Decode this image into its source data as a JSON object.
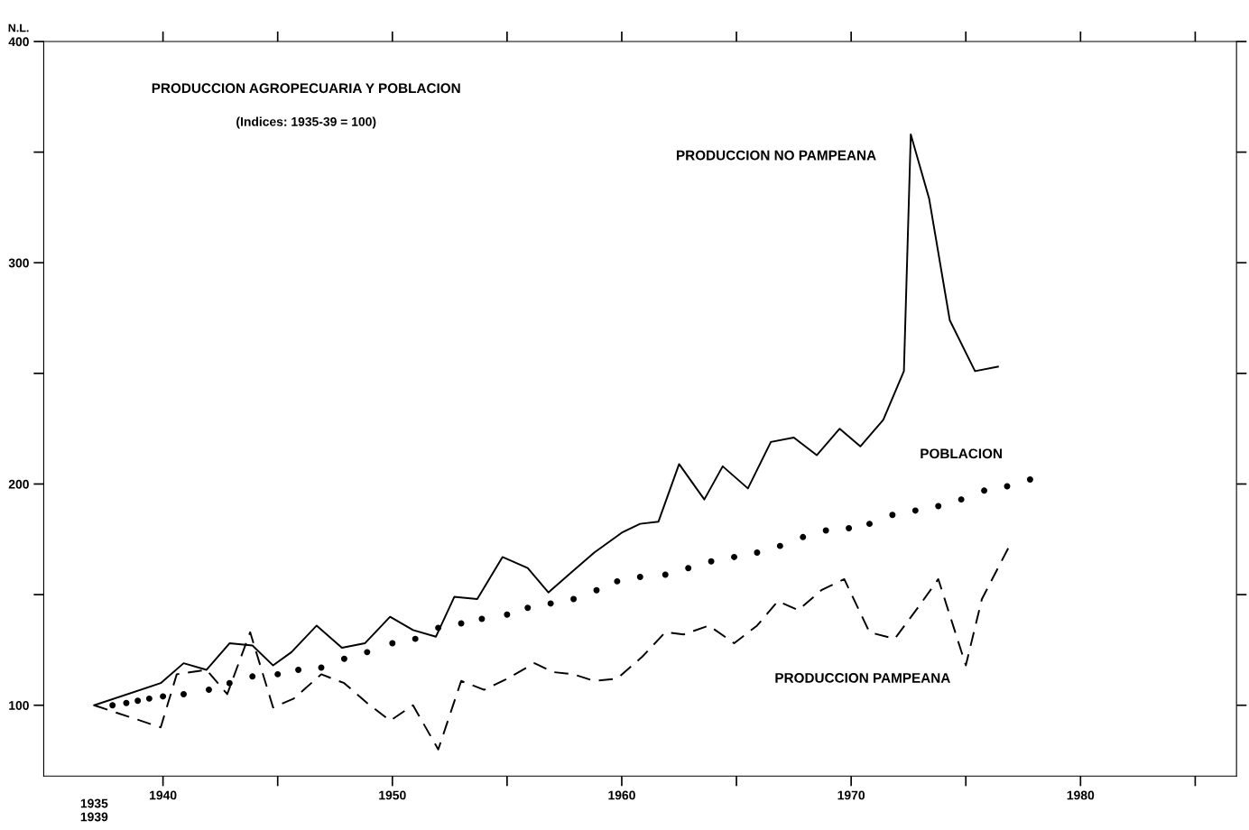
{
  "chart_data": {
    "type": "line",
    "title": "PRODUCCION AGROPECUARIA Y POBLACION",
    "subtitle": "(Indices: 1935-39 = 100)",
    "ylabel": "N.L.",
    "xlim": [
      1934.8,
      1986.8
    ],
    "ylim": [
      68,
      400
    ],
    "annotations": [
      "1935\n1939"
    ],
    "xticks": [
      1940,
      {
        "value": 1945,
        "label": null
      },
      1950,
      {
        "value": 1955,
        "label": null
      },
      1960,
      {
        "value": 1965,
        "label": null
      },
      1970,
      {
        "value": 1975,
        "label": null
      },
      1980,
      {
        "value": 1985,
        "label": null
      }
    ],
    "yticks": [
      100,
      {
        "value": 150,
        "label": null
      },
      200,
      {
        "value": 250,
        "label": null
      },
      300,
      {
        "value": 350,
        "label": null
      },
      400
    ],
    "grid": false,
    "legend": false,
    "series": [
      {
        "name": "PRODUCCION NO PAMPEANA",
        "line_style": "solid",
        "color": "#000000",
        "x": [
          1937.0,
          1939.9,
          1940.9,
          1941.9,
          1942.9,
          1943.9,
          1944.8,
          1945.6,
          1946.7,
          1947.8,
          1948.8,
          1949.9,
          1950.9,
          1951.9,
          1952.7,
          1953.7,
          1954.8,
          1955.9,
          1956.8,
          1957.8,
          1958.8,
          1960.0,
          1960.8,
          1961.6,
          1962.5,
          1963.6,
          1964.4,
          1965.5,
          1966.5,
          1967.5,
          1968.5,
          1969.5,
          1970.4,
          1971.4,
          1972.3,
          1972.6,
          1973.4,
          1974.3,
          1975.4,
          1976.4
        ],
        "values": [
          100,
          110,
          119,
          116,
          128,
          127,
          118,
          124,
          136,
          126,
          128,
          140,
          134,
          131,
          149,
          148,
          167,
          162,
          151,
          160,
          169,
          178,
          182,
          183,
          209,
          193,
          208,
          198,
          219,
          221,
          213,
          225,
          217,
          229,
          251,
          358,
          329,
          274,
          251,
          253
        ]
      },
      {
        "name": "POBLACION",
        "type": "scatter",
        "marker": "circle",
        "color": "#000000",
        "x": [
          1937.8,
          1938.4,
          1938.9,
          1939.4,
          1940.0,
          1940.9,
          1942.0,
          1942.9,
          1943.9,
          1945.0,
          1945.9,
          1946.9,
          1947.9,
          1948.9,
          1950.0,
          1951.0,
          1952.0,
          1953.0,
          1953.9,
          1955.0,
          1955.9,
          1956.9,
          1957.9,
          1958.9,
          1959.8,
          1960.8,
          1961.9,
          1962.9,
          1963.9,
          1964.9,
          1965.9,
          1966.9,
          1967.9,
          1968.9,
          1969.9,
          1970.8,
          1971.8,
          1972.8,
          1973.8,
          1974.8,
          1975.8,
          1976.8,
          1977.8
        ],
        "values": [
          100,
          101,
          102,
          103,
          104,
          105,
          107,
          110,
          113,
          114,
          116,
          117,
          121,
          124,
          128,
          130,
          135,
          137,
          139,
          141,
          144,
          146,
          148,
          152,
          156,
          158,
          159,
          162,
          165,
          167,
          169,
          172,
          176,
          179,
          180,
          182,
          186,
          188,
          190,
          193,
          197,
          199,
          202
        ]
      },
      {
        "name": "PRODUCCION PAMPEANA",
        "line_style": "dashed",
        "color": "#000000",
        "x": [
          1937.0,
          1939.9,
          1940.6,
          1941.9,
          1942.8,
          1943.8,
          1944.8,
          1945.7,
          1946.9,
          1947.9,
          1948.9,
          1949.9,
          1950.9,
          1952.0,
          1953.0,
          1954.0,
          1955.0,
          1956.2,
          1957.0,
          1957.9,
          1958.8,
          1959.8,
          1960.9,
          1961.9,
          1962.7,
          1963.8,
          1964.9,
          1965.9,
          1966.8,
          1967.7,
          1968.7,
          1969.7,
          1970.8,
          1971.9,
          1972.9,
          1973.8,
          1975.0,
          1975.7,
          1976.9
        ],
        "values": [
          100,
          90,
          114,
          116,
          105,
          133,
          99,
          103,
          114,
          110,
          101,
          93,
          100,
          80,
          111,
          107,
          112,
          119,
          115,
          114,
          111,
          112,
          122,
          133,
          132,
          136,
          128,
          136,
          147,
          143,
          152,
          157,
          133,
          130,
          144,
          157,
          118,
          148,
          172
        ]
      }
    ]
  }
}
